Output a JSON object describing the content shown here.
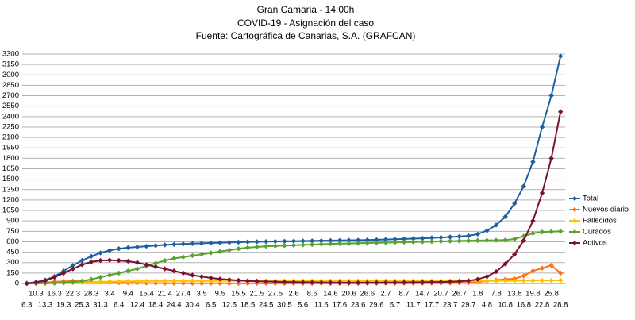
{
  "chart_data": {
    "type": "line",
    "title": "Gran Camaria - 14:00h",
    "subtitle": "COVID-19 - Asignación del caso",
    "source": "Fuente: Cartográfica de Canarias, S.A. (GRAFCAN)",
    "categories": [
      "6.3",
      "10.3",
      "13.3",
      "16.3",
      "19.3",
      "22.3",
      "25.3",
      "28.3",
      "31.3",
      "3.4",
      "6.4",
      "9.4",
      "12.4",
      "15.4",
      "18.4",
      "21.4",
      "24.4",
      "27.4",
      "30.4",
      "3.5",
      "6.5",
      "9.5",
      "12.5",
      "15.5",
      "18.5",
      "21.5",
      "24.5",
      "27.5",
      "30.5",
      "2.6",
      "5.6",
      "8.6",
      "11.6",
      "14.6",
      "17.6",
      "20.6",
      "23.6",
      "26.6",
      "29.6",
      "2.7",
      "5.7",
      "8.7",
      "11.7",
      "14.7",
      "17.7",
      "20.7",
      "23.7",
      "26.7",
      "29.7",
      "1.8",
      "4.8",
      "7.8",
      "10.8",
      "13.8",
      "16.8",
      "19.8",
      "22.8",
      "25.8",
      "28.8"
    ],
    "series": [
      {
        "name": "Total",
        "color": "#1f5fa0",
        "values": [
          5,
          20,
          50,
          100,
          180,
          260,
          330,
          390,
          440,
          475,
          500,
          515,
          525,
          535,
          545,
          555,
          562,
          568,
          573,
          578,
          582,
          586,
          590,
          594,
          598,
          600,
          603,
          605,
          607,
          609,
          611,
          613,
          615,
          617,
          619,
          621,
          623,
          626,
          629,
          633,
          637,
          641,
          645,
          650,
          656,
          662,
          668,
          675,
          685,
          710,
          760,
          840,
          960,
          1150,
          1400,
          1750,
          2250,
          2700,
          3270
        ]
      },
      {
        "name": "Nuevos diario",
        "color": "#ff6f1c",
        "values": [
          1,
          8,
          15,
          25,
          30,
          35,
          30,
          25,
          20,
          15,
          12,
          10,
          8,
          6,
          5,
          4,
          3,
          3,
          2,
          2,
          2,
          2,
          1,
          1,
          1,
          1,
          1,
          1,
          1,
          1,
          1,
          1,
          1,
          1,
          1,
          1,
          1,
          2,
          2,
          3,
          3,
          3,
          3,
          4,
          5,
          5,
          6,
          8,
          10,
          20,
          35,
          50,
          60,
          70,
          110,
          180,
          220,
          260,
          150
        ]
      },
      {
        "name": "Fallecidos",
        "color": "#ffc000",
        "values": [
          0,
          1,
          2,
          4,
          8,
          12,
          16,
          20,
          24,
          27,
          29,
          31,
          33,
          34,
          35,
          36,
          37,
          37,
          38,
          38,
          38,
          38,
          38,
          38,
          38,
          38,
          38,
          38,
          38,
          38,
          38,
          38,
          38,
          38,
          38,
          38,
          38,
          38,
          38,
          38,
          38,
          38,
          38,
          38,
          38,
          38,
          38,
          38,
          38,
          38,
          38,
          39,
          40,
          40,
          41,
          42,
          43,
          44,
          46
        ]
      },
      {
        "name": "Curados",
        "color": "#59a32c",
        "values": [
          0,
          0,
          2,
          5,
          10,
          20,
          35,
          60,
          90,
          120,
          150,
          180,
          210,
          250,
          290,
          330,
          360,
          380,
          400,
          420,
          440,
          460,
          480,
          500,
          515,
          525,
          535,
          540,
          545,
          550,
          555,
          560,
          565,
          570,
          573,
          576,
          579,
          582,
          585,
          588,
          591,
          594,
          597,
          600,
          603,
          606,
          609,
          612,
          615,
          618,
          620,
          622,
          625,
          640,
          680,
          720,
          740,
          745,
          750
        ]
      },
      {
        "name": "Activos",
        "color": "#7b1030",
        "values": [
          0,
          15,
          40,
          90,
          150,
          210,
          270,
          310,
          330,
          335,
          330,
          320,
          300,
          270,
          240,
          210,
          180,
          150,
          120,
          100,
          80,
          65,
          55,
          45,
          38,
          32,
          28,
          25,
          22,
          20,
          18,
          16,
          15,
          14,
          13,
          12,
          12,
          12,
          13,
          14,
          15,
          16,
          17,
          18,
          20,
          22,
          25,
          30,
          40,
          60,
          100,
          170,
          280,
          420,
          620,
          900,
          1300,
          1800,
          2470
        ]
      }
    ],
    "ylim": [
      0,
      3300
    ],
    "yticks": [
      0,
      150,
      300,
      450,
      600,
      750,
      900,
      1050,
      1200,
      1350,
      1500,
      1650,
      1800,
      1950,
      2100,
      2250,
      2400,
      2550,
      2700,
      2850,
      3000,
      3150,
      3300
    ],
    "grid": true,
    "legend": "right"
  }
}
